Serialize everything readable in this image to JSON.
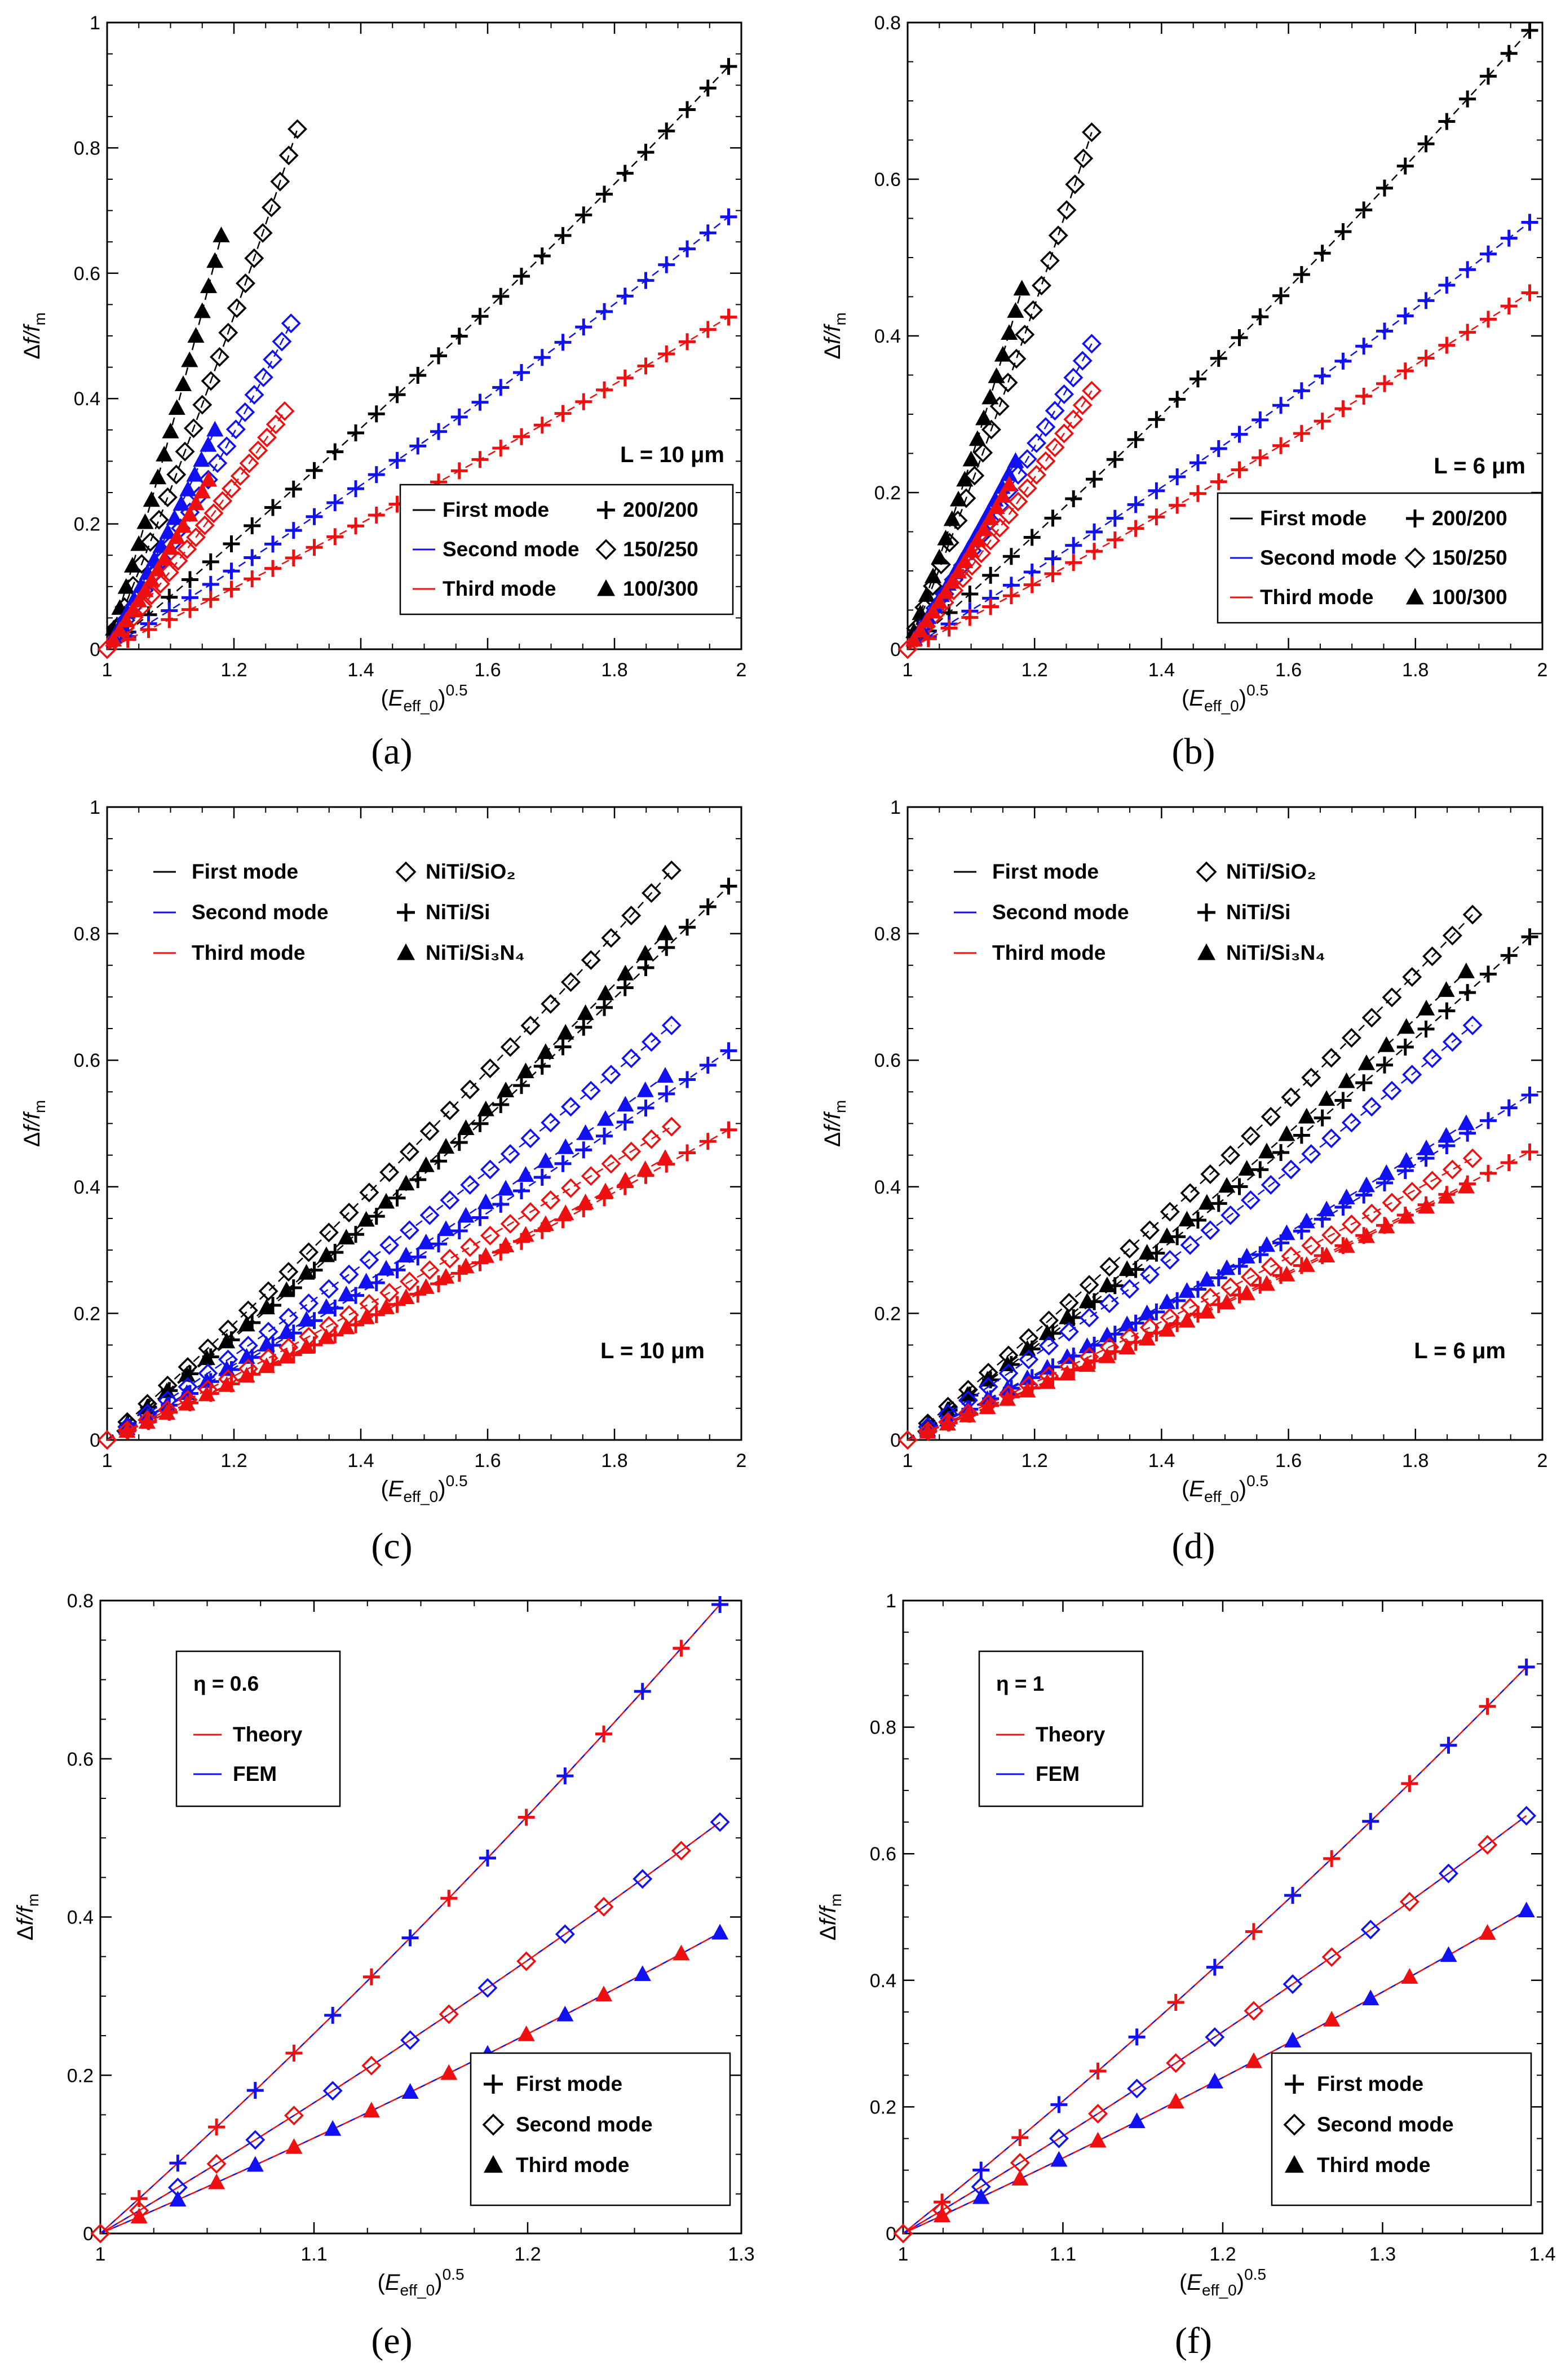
{
  "colors": {
    "black": "#000000",
    "blue": "#1010f0",
    "red": "#ee1010"
  },
  "y_axis_label": "Δf/f_m",
  "x_axis_label": "(E_eff_0)^0.5",
  "chart_data": [
    {
      "id": "a",
      "caption": "(a)",
      "type": "line",
      "xlim": [
        1,
        2
      ],
      "ylim": [
        0,
        1
      ],
      "xticks": [
        "1",
        "1.2",
        "1.4",
        "1.6",
        "1.8",
        "2"
      ],
      "yticks": [
        "0",
        "0.2",
        "0.4",
        "0.6",
        "0.8",
        "1"
      ],
      "annotation": "L = 10 μm",
      "legend_modes": [
        "First mode",
        "Second mode",
        "Third mode"
      ],
      "legend_markers": [
        "200/200",
        "150/250",
        "100/300"
      ],
      "series": [
        {
          "name": "First mode 200/200",
          "color": "black",
          "marker": "plus",
          "x_end": 1.98,
          "y_end": 0.93,
          "n": 30
        },
        {
          "name": "Second mode 200/200",
          "color": "blue",
          "marker": "plus",
          "x_end": 1.98,
          "y_end": 0.69,
          "n": 30
        },
        {
          "name": "Third mode 200/200",
          "color": "red",
          "marker": "plus",
          "x_end": 1.98,
          "y_end": 0.53,
          "n": 30
        },
        {
          "name": "First mode 150/250",
          "color": "black",
          "marker": "diamond",
          "x_end": 1.3,
          "y_end": 0.83,
          "n": 22
        },
        {
          "name": "Second mode 150/250",
          "color": "blue",
          "marker": "diamond",
          "x_end": 1.29,
          "y_end": 0.52,
          "n": 20
        },
        {
          "name": "Third mode 150/250",
          "color": "red",
          "marker": "diamond",
          "x_end": 1.28,
          "y_end": 0.38,
          "n": 20
        },
        {
          "name": "First mode 100/300",
          "color": "black",
          "marker": "triangle",
          "x_end": 1.18,
          "y_end": 0.66,
          "n": 18
        },
        {
          "name": "Second mode 100/300",
          "color": "blue",
          "marker": "triangle",
          "x_end": 1.17,
          "y_end": 0.35,
          "n": 16
        },
        {
          "name": "Third mode 100/300",
          "color": "red",
          "marker": "triangle",
          "x_end": 1.16,
          "y_end": 0.27,
          "n": 16
        }
      ]
    },
    {
      "id": "b",
      "caption": "(b)",
      "type": "line",
      "xlim": [
        1,
        2
      ],
      "ylim": [
        0,
        0.8
      ],
      "xticks": [
        "1",
        "1.2",
        "1.4",
        "1.6",
        "1.8",
        "2"
      ],
      "yticks": [
        "0",
        "0.2",
        "0.4",
        "0.6",
        "0.8"
      ],
      "annotation": "L = 6 μm",
      "legend_modes": [
        "First mode",
        "Second mode",
        "Third mode"
      ],
      "legend_markers": [
        "200/200",
        "150/250",
        "100/300"
      ],
      "series": [
        {
          "name": "First mode 200/200",
          "color": "black",
          "marker": "plus",
          "x_end": 1.98,
          "y_end": 0.79,
          "n": 30
        },
        {
          "name": "Second mode 200/200",
          "color": "blue",
          "marker": "plus",
          "x_end": 1.98,
          "y_end": 0.545,
          "n": 30
        },
        {
          "name": "Third mode 200/200",
          "color": "red",
          "marker": "plus",
          "x_end": 1.98,
          "y_end": 0.455,
          "n": 30
        },
        {
          "name": "First mode 150/250",
          "color": "black",
          "marker": "diamond",
          "x_end": 1.29,
          "y_end": 0.66,
          "n": 22
        },
        {
          "name": "Second mode 150/250",
          "color": "blue",
          "marker": "diamond",
          "x_end": 1.29,
          "y_end": 0.39,
          "n": 20
        },
        {
          "name": "Third mode 150/250",
          "color": "red",
          "marker": "diamond",
          "x_end": 1.29,
          "y_end": 0.33,
          "n": 20
        },
        {
          "name": "First mode 100/300",
          "color": "black",
          "marker": "triangle",
          "x_end": 1.18,
          "y_end": 0.46,
          "n": 18
        },
        {
          "name": "Second mode 100/300",
          "color": "blue",
          "marker": "triangle",
          "x_end": 1.17,
          "y_end": 0.24,
          "n": 16
        },
        {
          "name": "Third mode 100/300",
          "color": "red",
          "marker": "triangle",
          "x_end": 1.16,
          "y_end": 0.21,
          "n": 16
        }
      ]
    },
    {
      "id": "c",
      "caption": "(c)",
      "type": "line",
      "xlim": [
        1,
        2
      ],
      "ylim": [
        0,
        1
      ],
      "xticks": [
        "1",
        "1.2",
        "1.4",
        "1.6",
        "1.8",
        "2"
      ],
      "yticks": [
        "0",
        "0.2",
        "0.4",
        "0.6",
        "0.8",
        "1"
      ],
      "annotation": "L = 10 μm",
      "legend_modes": [
        "First mode",
        "Second mode",
        "Third mode"
      ],
      "legend_markers": [
        "NiTi/SiO₂",
        "NiTi/Si",
        "NiTi/Si₃N₄"
      ],
      "series": [
        {
          "name": "First mode NiTi/SiO2",
          "color": "black",
          "marker": "diamond",
          "x_end": 1.89,
          "y_end": 0.9,
          "n": 28
        },
        {
          "name": "First mode NiTi/Si",
          "color": "black",
          "marker": "plus",
          "x_end": 1.98,
          "y_end": 0.875,
          "n": 30
        },
        {
          "name": "First mode NiTi/Si3N4",
          "color": "black",
          "marker": "triangle",
          "x_end": 1.88,
          "y_end": 0.8,
          "n": 28
        },
        {
          "name": "Second mode NiTi/SiO2",
          "color": "blue",
          "marker": "diamond",
          "x_end": 1.89,
          "y_end": 0.655,
          "n": 28
        },
        {
          "name": "Second mode NiTi/Si",
          "color": "blue",
          "marker": "plus",
          "x_end": 1.98,
          "y_end": 0.615,
          "n": 30
        },
        {
          "name": "Second mode NiTi/Si3N4",
          "color": "blue",
          "marker": "triangle",
          "x_end": 1.88,
          "y_end": 0.575,
          "n": 28
        },
        {
          "name": "Third mode NiTi/SiO2",
          "color": "red",
          "marker": "diamond",
          "x_end": 1.89,
          "y_end": 0.495,
          "n": 28
        },
        {
          "name": "Third mode NiTi/Si",
          "color": "red",
          "marker": "plus",
          "x_end": 1.98,
          "y_end": 0.49,
          "n": 30
        },
        {
          "name": "Third mode NiTi/Si3N4",
          "color": "red",
          "marker": "triangle",
          "x_end": 1.88,
          "y_end": 0.445,
          "n": 28
        }
      ]
    },
    {
      "id": "d",
      "caption": "(d)",
      "type": "line",
      "xlim": [
        1,
        2
      ],
      "ylim": [
        0,
        1
      ],
      "xticks": [
        "1",
        "1.2",
        "1.4",
        "1.6",
        "1.8",
        "2"
      ],
      "yticks": [
        "0",
        "0.2",
        "0.4",
        "0.6",
        "0.8",
        "1"
      ],
      "annotation": "L = 6 μm",
      "legend_modes": [
        "First mode",
        "Second mode",
        "Third mode"
      ],
      "legend_markers": [
        "NiTi/SiO₂",
        "NiTi/Si",
        "NiTi/Si₃N₄"
      ],
      "series": [
        {
          "name": "First mode NiTi/SiO2",
          "color": "black",
          "marker": "diamond",
          "x_end": 1.89,
          "y_end": 0.83,
          "n": 28
        },
        {
          "name": "First mode NiTi/Si",
          "color": "black",
          "marker": "plus",
          "x_end": 1.98,
          "y_end": 0.795,
          "n": 30
        },
        {
          "name": "First mode NiTi/Si3N4",
          "color": "black",
          "marker": "triangle",
          "x_end": 1.88,
          "y_end": 0.74,
          "n": 28
        },
        {
          "name": "Second mode NiTi/SiO2",
          "color": "blue",
          "marker": "diamond",
          "x_end": 1.89,
          "y_end": 0.655,
          "n": 28
        },
        {
          "name": "Second mode NiTi/Si",
          "color": "blue",
          "marker": "plus",
          "x_end": 1.98,
          "y_end": 0.545,
          "n": 30
        },
        {
          "name": "Second mode NiTi/Si3N4",
          "color": "blue",
          "marker": "triangle",
          "x_end": 1.88,
          "y_end": 0.5,
          "n": 28
        },
        {
          "name": "Third mode NiTi/SiO2",
          "color": "red",
          "marker": "diamond",
          "x_end": 1.89,
          "y_end": 0.445,
          "n": 28
        },
        {
          "name": "Third mode NiTi/Si",
          "color": "red",
          "marker": "plus",
          "x_end": 1.98,
          "y_end": 0.455,
          "n": 30
        },
        {
          "name": "Third mode NiTi/Si3N4",
          "color": "red",
          "marker": "triangle",
          "x_end": 1.88,
          "y_end": 0.4,
          "n": 28
        }
      ]
    },
    {
      "id": "e",
      "caption": "(e)",
      "type": "line",
      "xlim": [
        1,
        1.3
      ],
      "ylim": [
        0,
        0.8
      ],
      "xticks": [
        "1",
        "1.1",
        "1.2",
        "1.3"
      ],
      "yticks": [
        "0",
        "0.2",
        "0.4",
        "0.6",
        "0.8"
      ],
      "eta_label": "η = 0.6",
      "legend_lines": [
        "Theory",
        "FEM"
      ],
      "legend_markers": [
        "First mode",
        "Second mode",
        "Third mode"
      ],
      "series": [
        {
          "name": "First mode",
          "marker": "plus",
          "x_end": 1.29,
          "y_end": 0.795,
          "n": 16
        },
        {
          "name": "Second mode",
          "marker": "diamond",
          "x_end": 1.29,
          "y_end": 0.52,
          "n": 16
        },
        {
          "name": "Third mode",
          "marker": "triangle",
          "x_end": 1.29,
          "y_end": 0.38,
          "n": 16
        }
      ]
    },
    {
      "id": "f",
      "caption": "(f)",
      "type": "line",
      "xlim": [
        1,
        1.4
      ],
      "ylim": [
        0,
        1
      ],
      "xticks": [
        "1",
        "1.1",
        "1.2",
        "1.3",
        "1.4"
      ],
      "yticks": [
        "0",
        "0.2",
        "0.4",
        "0.6",
        "0.8",
        "1"
      ],
      "eta_label": "η = 1",
      "legend_lines": [
        "Theory",
        "FEM"
      ],
      "legend_markers": [
        "First mode",
        "Second mode",
        "Third mode"
      ],
      "series": [
        {
          "name": "First mode",
          "marker": "plus",
          "x_end": 1.39,
          "y_end": 0.895,
          "n": 16
        },
        {
          "name": "Second mode",
          "marker": "diamond",
          "x_end": 1.39,
          "y_end": 0.66,
          "n": 16
        },
        {
          "name": "Third mode",
          "marker": "triangle",
          "x_end": 1.39,
          "y_end": 0.51,
          "n": 16
        }
      ]
    }
  ]
}
